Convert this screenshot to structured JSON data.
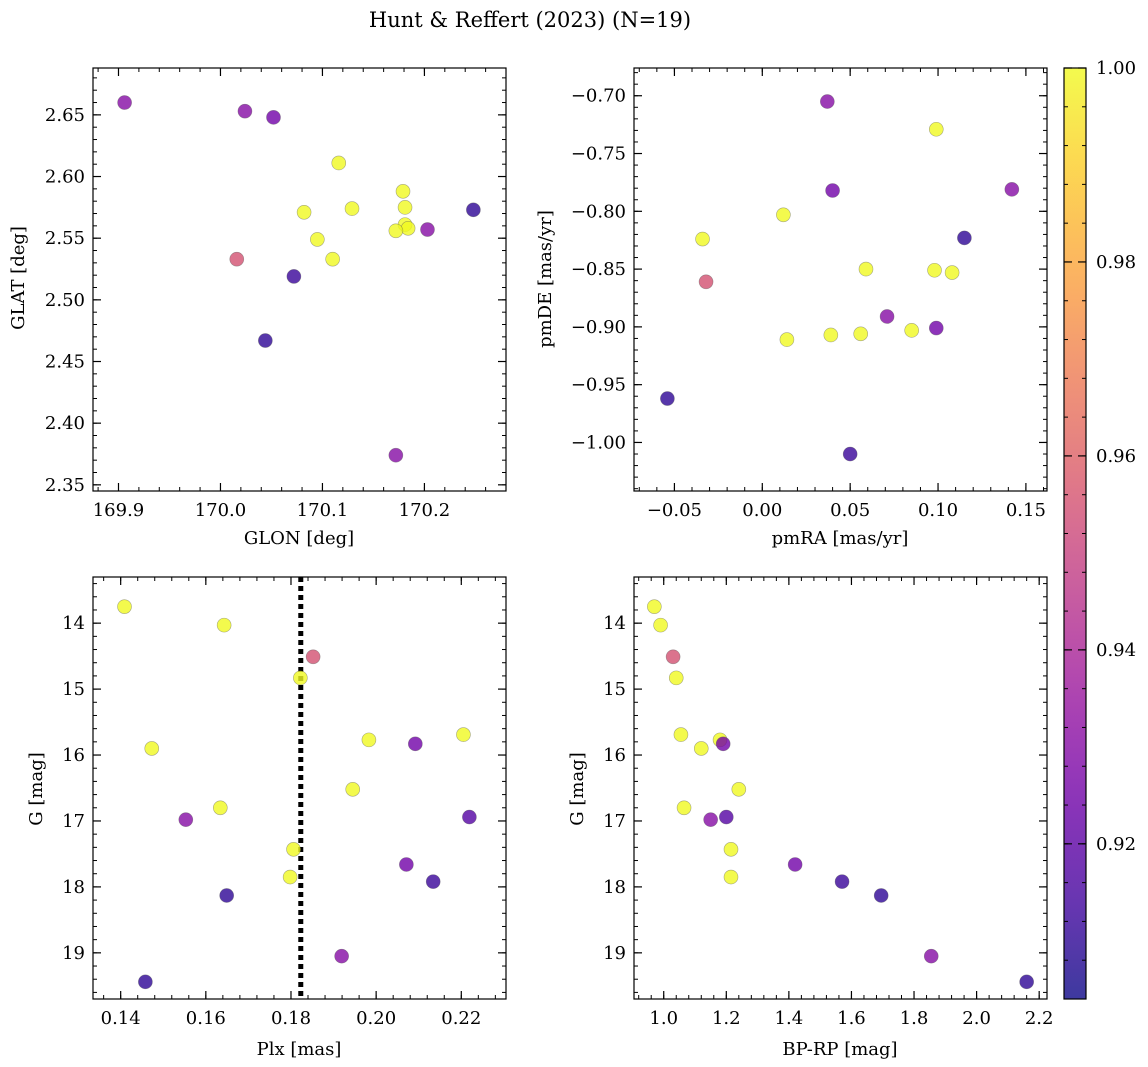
{
  "figure": {
    "title": "Hunt & Reffert (2023) (N=19)",
    "colormap": [
      "#0d0887",
      "#46039f",
      "#7201a8",
      "#9c179e",
      "#bd3786",
      "#d8576b",
      "#ed7953",
      "#fb9f3a",
      "#fdca26",
      "#f0f921"
    ],
    "point_alpha": 0.8,
    "colorbar": {
      "range": [
        0.904,
        1.0
      ],
      "ticks": [
        0.92,
        0.94,
        0.96,
        0.98,
        1.0
      ],
      "tick_labels": [
        "0.92",
        "0.94",
        "0.96",
        "0.98",
        "1.00"
      ]
    }
  },
  "chart_data": [
    {
      "type": "scatter",
      "title": "",
      "xlabel": "GLON [deg]",
      "ylabel": "GLAT [deg]",
      "xlim": [
        169.875,
        170.28
      ],
      "ylim": [
        2.345,
        2.688
      ],
      "y_inverted": false,
      "xticks": [
        169.9,
        170.0,
        170.1,
        170.2
      ],
      "xtick_labels": [
        "169.9",
        "170.0",
        "170.1",
        "170.2"
      ],
      "yticks": [
        2.35,
        2.4,
        2.45,
        2.5,
        2.55,
        2.6,
        2.65
      ],
      "ytick_labels": [
        "2.35",
        "2.40",
        "2.45",
        "2.50",
        "2.55",
        "2.60",
        "2.65"
      ],
      "x_minor_step": 0.02,
      "y_minor_step": 0.01,
      "points": [
        {
          "x": 169.906,
          "y": 2.66,
          "c": 0.93
        },
        {
          "x": 170.024,
          "y": 2.653,
          "c": 0.93
        },
        {
          "x": 170.052,
          "y": 2.648,
          "c": 0.925
        },
        {
          "x": 170.116,
          "y": 2.611,
          "c": 1.0
        },
        {
          "x": 170.179,
          "y": 2.588,
          "c": 1.0
        },
        {
          "x": 170.248,
          "y": 2.573,
          "c": 0.91
        },
        {
          "x": 170.129,
          "y": 2.574,
          "c": 1.0
        },
        {
          "x": 170.082,
          "y": 2.571,
          "c": 1.0
        },
        {
          "x": 170.181,
          "y": 2.575,
          "c": 1.0
        },
        {
          "x": 170.181,
          "y": 2.561,
          "c": 1.0
        },
        {
          "x": 170.184,
          "y": 2.558,
          "c": 1.0
        },
        {
          "x": 170.172,
          "y": 2.556,
          "c": 1.0
        },
        {
          "x": 170.203,
          "y": 2.557,
          "c": 0.93
        },
        {
          "x": 170.095,
          "y": 2.549,
          "c": 1.0
        },
        {
          "x": 170.016,
          "y": 2.533,
          "c": 0.955
        },
        {
          "x": 170.11,
          "y": 2.533,
          "c": 1.0
        },
        {
          "x": 170.072,
          "y": 2.519,
          "c": 0.912
        },
        {
          "x": 170.044,
          "y": 2.467,
          "c": 0.91
        },
        {
          "x": 170.172,
          "y": 2.374,
          "c": 0.93
        }
      ]
    },
    {
      "type": "scatter",
      "title": "",
      "xlabel": "pmRA [mas/yr]",
      "ylabel": "pmDE [mas/yr]",
      "xlim": [
        -0.073,
        0.162
      ],
      "ylim": [
        -1.042,
        -0.676
      ],
      "y_inverted": false,
      "xticks": [
        -0.05,
        0.0,
        0.05,
        0.1,
        0.15
      ],
      "xtick_labels": [
        "−0.05",
        "0.00",
        "0.05",
        "0.10",
        "0.15"
      ],
      "yticks": [
        -1.0,
        -0.95,
        -0.9,
        -0.85,
        -0.8,
        -0.75,
        -0.7
      ],
      "ytick_labels": [
        "−1.00",
        "−0.95",
        "−0.90",
        "−0.85",
        "−0.80",
        "−0.75",
        "−0.70"
      ],
      "x_minor_step": 0.01,
      "y_minor_step": 0.01,
      "points": [
        {
          "x": 0.037,
          "y": -0.705,
          "c": 0.93
        },
        {
          "x": 0.099,
          "y": -0.729,
          "c": 1.0
        },
        {
          "x": 0.04,
          "y": -0.782,
          "c": 0.925
        },
        {
          "x": 0.142,
          "y": -0.781,
          "c": 0.93
        },
        {
          "x": 0.012,
          "y": -0.803,
          "c": 1.0
        },
        {
          "x": -0.034,
          "y": -0.824,
          "c": 1.0
        },
        {
          "x": 0.115,
          "y": -0.823,
          "c": 0.91
        },
        {
          "x": 0.059,
          "y": -0.85,
          "c": 1.0
        },
        {
          "x": 0.098,
          "y": -0.851,
          "c": 1.0
        },
        {
          "x": 0.108,
          "y": -0.853,
          "c": 1.0
        },
        {
          "x": -0.032,
          "y": -0.861,
          "c": 0.955
        },
        {
          "x": 0.071,
          "y": -0.891,
          "c": 0.93
        },
        {
          "x": 0.099,
          "y": -0.901,
          "c": 0.925
        },
        {
          "x": 0.085,
          "y": -0.903,
          "c": 1.0
        },
        {
          "x": 0.056,
          "y": -0.906,
          "c": 1.0
        },
        {
          "x": 0.039,
          "y": -0.907,
          "c": 1.0
        },
        {
          "x": 0.014,
          "y": -0.911,
          "c": 1.0
        },
        {
          "x": -0.054,
          "y": -0.962,
          "c": 0.91
        },
        {
          "x": 0.05,
          "y": -1.01,
          "c": 0.912
        }
      ]
    },
    {
      "type": "scatter",
      "title": "",
      "xlabel": "Plx [mas]",
      "ylabel": "G [mag]",
      "xlim": [
        0.1335,
        0.2305
      ],
      "ylim": [
        13.3,
        19.7
      ],
      "y_inverted": true,
      "xticks": [
        0.14,
        0.16,
        0.18,
        0.2,
        0.22
      ],
      "xtick_labels": [
        "0.14",
        "0.16",
        "0.18",
        "0.20",
        "0.22"
      ],
      "yticks": [
        14,
        15,
        16,
        17,
        18,
        19
      ],
      "ytick_labels": [
        "14",
        "15",
        "16",
        "17",
        "18",
        "19"
      ],
      "x_minor_step": 0.004,
      "y_minor_step": 0.2,
      "vline": {
        "x": 0.1823,
        "style": "dotted"
      },
      "points": [
        {
          "x": 0.1409,
          "y": 13.75,
          "c": 1.0
        },
        {
          "x": 0.1643,
          "y": 14.03,
          "c": 1.0
        },
        {
          "x": 0.1852,
          "y": 14.51,
          "c": 0.955
        },
        {
          "x": 0.1822,
          "y": 14.83,
          "c": 1.0
        },
        {
          "x": 0.2205,
          "y": 15.69,
          "c": 1.0
        },
        {
          "x": 0.1983,
          "y": 15.77,
          "c": 1.0
        },
        {
          "x": 0.2092,
          "y": 15.83,
          "c": 0.925
        },
        {
          "x": 0.1473,
          "y": 15.9,
          "c": 1.0
        },
        {
          "x": 0.1945,
          "y": 16.52,
          "c": 1.0
        },
        {
          "x": 0.1634,
          "y": 16.8,
          "c": 1.0
        },
        {
          "x": 0.1553,
          "y": 16.98,
          "c": 0.93
        },
        {
          "x": 0.2219,
          "y": 16.94,
          "c": 0.918
        },
        {
          "x": 0.1806,
          "y": 17.43,
          "c": 1.0
        },
        {
          "x": 0.2071,
          "y": 17.66,
          "c": 0.925
        },
        {
          "x": 0.1798,
          "y": 17.85,
          "c": 1.0
        },
        {
          "x": 0.2134,
          "y": 17.92,
          "c": 0.912
        },
        {
          "x": 0.1649,
          "y": 18.13,
          "c": 0.91
        },
        {
          "x": 0.1919,
          "y": 19.05,
          "c": 0.93
        },
        {
          "x": 0.1458,
          "y": 19.44,
          "c": 0.91
        }
      ]
    },
    {
      "type": "scatter",
      "title": "",
      "xlabel": "BP-RP [mag]",
      "ylabel": "G [mag]",
      "xlim": [
        0.905,
        2.225
      ],
      "ylim": [
        13.3,
        19.7
      ],
      "y_inverted": true,
      "xticks": [
        1.0,
        1.2,
        1.4,
        1.6,
        1.8,
        2.0,
        2.2
      ],
      "xtick_labels": [
        "1.0",
        "1.2",
        "1.4",
        "1.6",
        "1.8",
        "2.0",
        "2.2"
      ],
      "yticks": [
        14,
        15,
        16,
        17,
        18,
        19
      ],
      "ytick_labels": [
        "14",
        "15",
        "16",
        "17",
        "18",
        "19"
      ],
      "x_minor_step": 0.04,
      "y_minor_step": 0.2,
      "points": [
        {
          "x": 0.97,
          "y": 13.75,
          "c": 1.0
        },
        {
          "x": 0.99,
          "y": 14.03,
          "c": 1.0
        },
        {
          "x": 1.03,
          "y": 14.51,
          "c": 0.955
        },
        {
          "x": 1.04,
          "y": 14.83,
          "c": 1.0
        },
        {
          "x": 1.055,
          "y": 15.69,
          "c": 1.0
        },
        {
          "x": 1.12,
          "y": 15.9,
          "c": 1.0
        },
        {
          "x": 1.18,
          "y": 15.77,
          "c": 1.0
        },
        {
          "x": 1.19,
          "y": 15.83,
          "c": 0.925
        },
        {
          "x": 1.24,
          "y": 16.52,
          "c": 1.0
        },
        {
          "x": 1.065,
          "y": 16.8,
          "c": 1.0
        },
        {
          "x": 1.15,
          "y": 16.98,
          "c": 0.93
        },
        {
          "x": 1.2,
          "y": 16.94,
          "c": 0.918
        },
        {
          "x": 1.215,
          "y": 17.43,
          "c": 1.0
        },
        {
          "x": 1.215,
          "y": 17.85,
          "c": 1.0
        },
        {
          "x": 1.42,
          "y": 17.66,
          "c": 0.925
        },
        {
          "x": 1.57,
          "y": 17.92,
          "c": 0.912
        },
        {
          "x": 1.695,
          "y": 18.13,
          "c": 0.91
        },
        {
          "x": 1.855,
          "y": 19.05,
          "c": 0.93
        },
        {
          "x": 2.16,
          "y": 19.44,
          "c": 0.91
        }
      ]
    }
  ]
}
